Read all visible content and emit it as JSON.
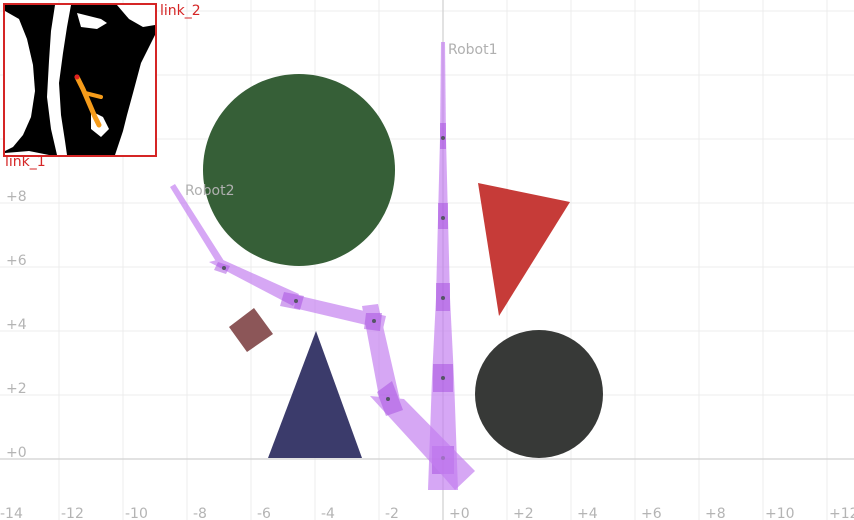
{
  "axis": {
    "x_ticks": [
      "-14",
      "-12",
      "-10",
      "-8",
      "-6",
      "-4",
      "-2",
      "+0",
      "+2",
      "+4",
      "+6",
      "+8",
      "+10",
      "+12"
    ],
    "y_ticks": [
      "+0",
      "+2",
      "+4",
      "+6",
      "+8"
    ],
    "x_range": [
      -14,
      12.5
    ],
    "y_range": [
      -1.8,
      14.2
    ],
    "grid": true
  },
  "robots": [
    {
      "label": "Robot1",
      "color": "#c37ef0"
    },
    {
      "label": "Robot2",
      "color": "#c37ef0"
    }
  ],
  "obstacles": [
    {
      "type": "circle",
      "color": "#365f37"
    },
    {
      "type": "circle",
      "color": "#373937"
    },
    {
      "type": "triangle",
      "color": "#c63b38"
    },
    {
      "type": "triangle",
      "color": "#3b3b6b"
    },
    {
      "type": "square",
      "color": "#8c5658"
    }
  ],
  "inset": {
    "link_1_label": "link_1",
    "link_2_label": "link_2",
    "border_color": "#d52525",
    "path_color": "#f59b1a"
  }
}
